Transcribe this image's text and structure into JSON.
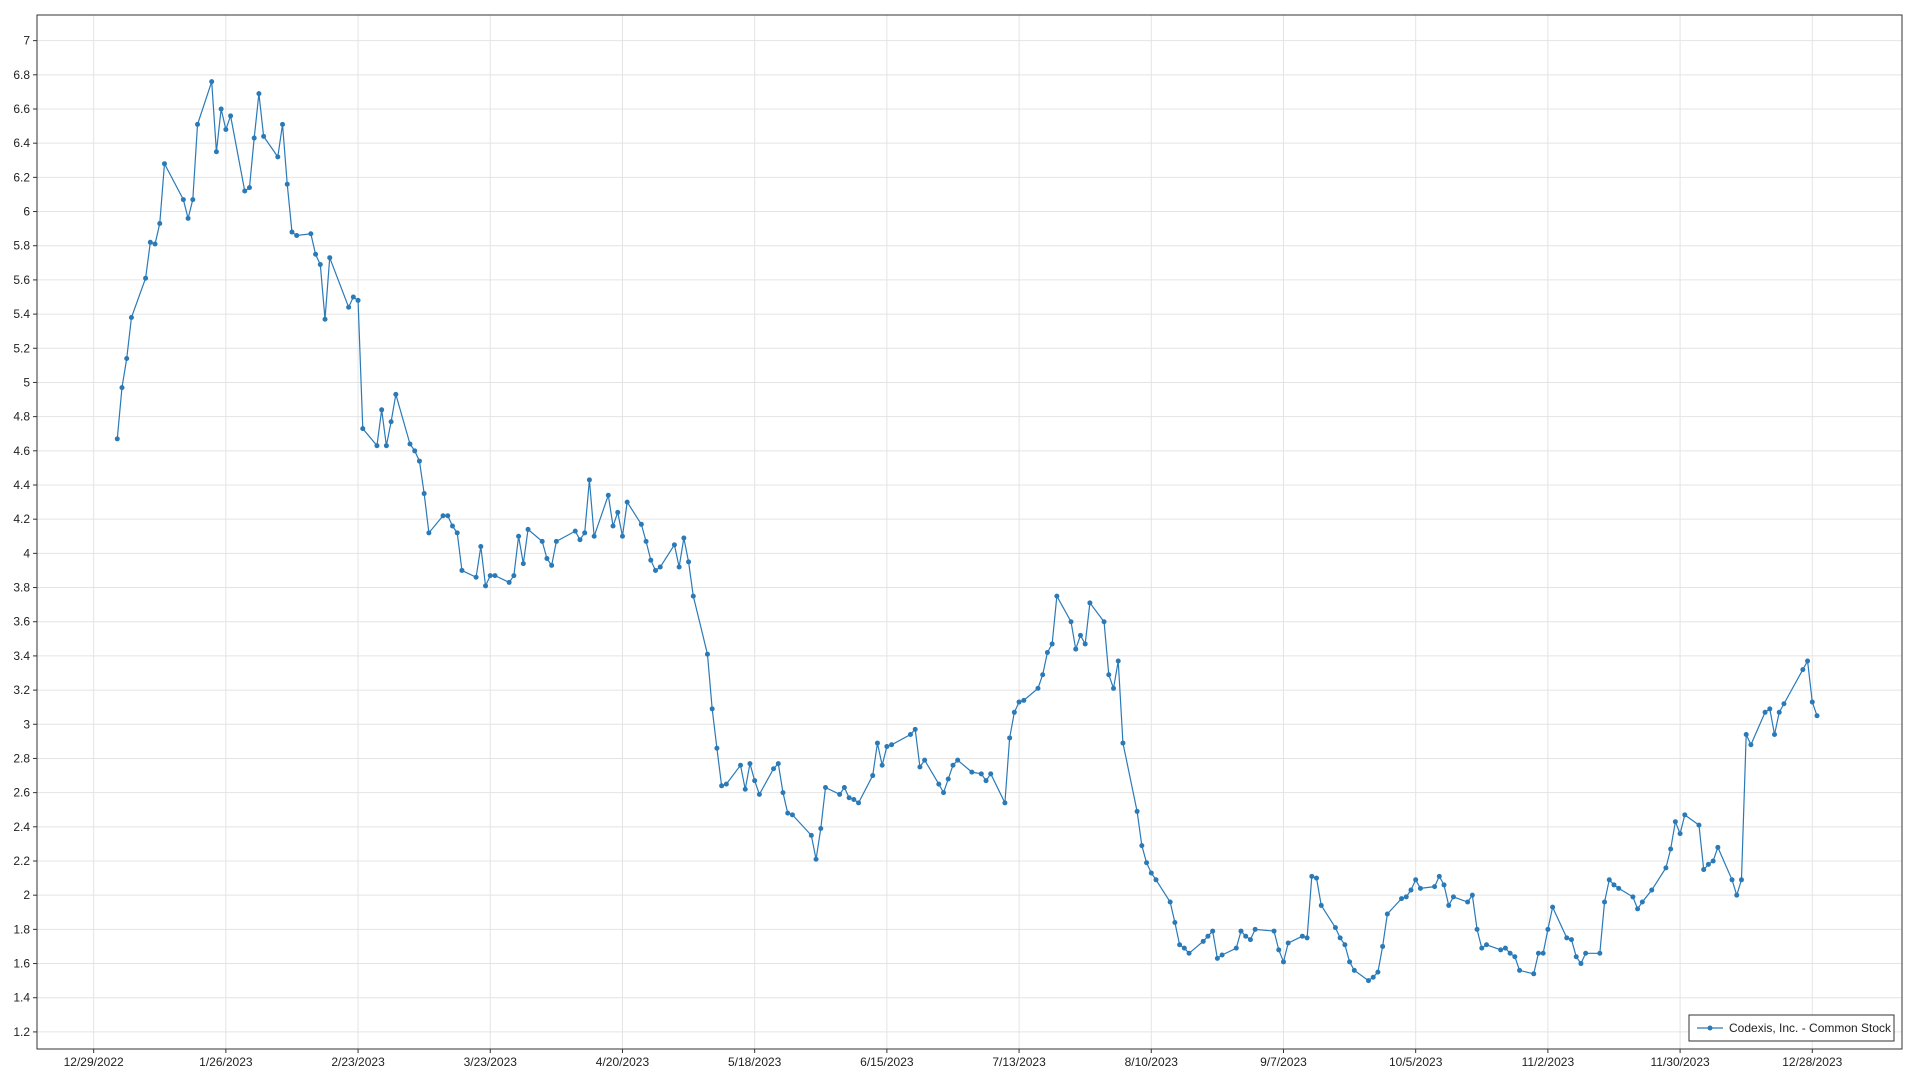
{
  "chart_data": {
    "type": "line",
    "x": [
      "1/3/2023",
      "1/4/2023",
      "1/5/2023",
      "1/6/2023",
      "1/9/2023",
      "1/10/2023",
      "1/11/2023",
      "1/12/2023",
      "1/13/2023",
      "1/17/2023",
      "1/18/2023",
      "1/19/2023",
      "1/20/2023",
      "1/23/2023",
      "1/24/2023",
      "1/25/2023",
      "1/26/2023",
      "1/27/2023",
      "1/30/2023",
      "1/31/2023",
      "2/1/2023",
      "2/2/2023",
      "2/3/2023",
      "2/6/2023",
      "2/7/2023",
      "2/8/2023",
      "2/9/2023",
      "2/10/2023",
      "2/13/2023",
      "2/14/2023",
      "2/15/2023",
      "2/16/2023",
      "2/17/2023",
      "2/21/2023",
      "2/22/2023",
      "2/23/2023",
      "2/24/2023",
      "2/27/2023",
      "2/28/2023",
      "3/1/2023",
      "3/2/2023",
      "3/3/2023",
      "3/6/2023",
      "3/7/2023",
      "3/8/2023",
      "3/9/2023",
      "3/10/2023",
      "3/13/2023",
      "3/14/2023",
      "3/15/2023",
      "3/16/2023",
      "3/17/2023",
      "3/20/2023",
      "3/21/2023",
      "3/22/2023",
      "3/23/2023",
      "3/24/2023",
      "3/27/2023",
      "3/28/2023",
      "3/29/2023",
      "3/30/2023",
      "3/31/2023",
      "4/3/2023",
      "4/4/2023",
      "4/5/2023",
      "4/6/2023",
      "4/10/2023",
      "4/11/2023",
      "4/12/2023",
      "4/13/2023",
      "4/14/2023",
      "4/17/2023",
      "4/18/2023",
      "4/19/2023",
      "4/20/2023",
      "4/21/2023",
      "4/24/2023",
      "4/25/2023",
      "4/26/2023",
      "4/27/2023",
      "4/28/2023",
      "5/1/2023",
      "5/2/2023",
      "5/3/2023",
      "5/4/2023",
      "5/5/2023",
      "5/8/2023",
      "5/9/2023",
      "5/10/2023",
      "5/11/2023",
      "5/12/2023",
      "5/15/2023",
      "5/16/2023",
      "5/17/2023",
      "5/18/2023",
      "5/19/2023",
      "5/22/2023",
      "5/23/2023",
      "5/24/2023",
      "5/25/2023",
      "5/26/2023",
      "5/30/2023",
      "5/31/2023",
      "6/1/2023",
      "6/2/2023",
      "6/5/2023",
      "6/6/2023",
      "6/7/2023",
      "6/8/2023",
      "6/9/2023",
      "6/12/2023",
      "6/13/2023",
      "6/14/2023",
      "6/15/2023",
      "6/16/2023",
      "6/20/2023",
      "6/21/2023",
      "6/22/2023",
      "6/23/2023",
      "6/26/2023",
      "6/27/2023",
      "6/28/2023",
      "6/29/2023",
      "6/30/2023",
      "7/3/2023",
      "7/5/2023",
      "7/6/2023",
      "7/7/2023",
      "7/10/2023",
      "7/11/2023",
      "7/12/2023",
      "7/13/2023",
      "7/14/2023",
      "7/17/2023",
      "7/18/2023",
      "7/19/2023",
      "7/20/2023",
      "7/21/2023",
      "7/24/2023",
      "7/25/2023",
      "7/26/2023",
      "7/27/2023",
      "7/28/2023",
      "7/31/2023",
      "8/1/2023",
      "8/2/2023",
      "8/3/2023",
      "8/4/2023",
      "8/7/2023",
      "8/8/2023",
      "8/9/2023",
      "8/10/2023",
      "8/11/2023",
      "8/14/2023",
      "8/15/2023",
      "8/16/2023",
      "8/17/2023",
      "8/18/2023",
      "8/21/2023",
      "8/22/2023",
      "8/23/2023",
      "8/24/2023",
      "8/25/2023",
      "8/28/2023",
      "8/29/2023",
      "8/30/2023",
      "8/31/2023",
      "9/1/2023",
      "9/5/2023",
      "9/6/2023",
      "9/7/2023",
      "9/8/2023",
      "9/11/2023",
      "9/12/2023",
      "9/13/2023",
      "9/14/2023",
      "9/15/2023",
      "9/18/2023",
      "9/19/2023",
      "9/20/2023",
      "9/21/2023",
      "9/22/2023",
      "9/25/2023",
      "9/26/2023",
      "9/27/2023",
      "9/28/2023",
      "9/29/2023",
      "10/2/2023",
      "10/3/2023",
      "10/4/2023",
      "10/5/2023",
      "10/6/2023",
      "10/9/2023",
      "10/10/2023",
      "10/11/2023",
      "10/12/2023",
      "10/13/2023",
      "10/16/2023",
      "10/17/2023",
      "10/18/2023",
      "10/19/2023",
      "10/20/2023",
      "10/23/2023",
      "10/24/2023",
      "10/25/2023",
      "10/26/2023",
      "10/27/2023",
      "10/30/2023",
      "10/31/2023",
      "11/1/2023",
      "11/2/2023",
      "11/3/2023",
      "11/6/2023",
      "11/7/2023",
      "11/8/2023",
      "11/9/2023",
      "11/10/2023",
      "11/13/2023",
      "11/14/2023",
      "11/15/2023",
      "11/16/2023",
      "11/17/2023",
      "11/20/2023",
      "11/21/2023",
      "11/22/2023",
      "11/24/2023",
      "11/27/2023",
      "11/28/2023",
      "11/29/2023",
      "11/30/2023",
      "12/1/2023",
      "12/4/2023",
      "12/5/2023",
      "12/6/2023",
      "12/7/2023",
      "12/8/2023",
      "12/11/2023",
      "12/12/2023",
      "12/13/2023",
      "12/14/2023",
      "12/15/2023",
      "12/18/2023",
      "12/19/2023",
      "12/20/2023",
      "12/21/2023",
      "12/22/2023",
      "12/26/2023",
      "12/27/2023",
      "12/28/2023",
      "12/29/2023"
    ],
    "series": [
      {
        "name": "Codexis, Inc. - Common Stock",
        "color": "#2a7ab8",
        "values": [
          4.67,
          4.97,
          5.14,
          5.38,
          5.61,
          5.82,
          5.81,
          5.93,
          6.28,
          6.07,
          5.96,
          6.07,
          6.51,
          6.76,
          6.35,
          6.6,
          6.48,
          6.56,
          6.12,
          6.14,
          6.43,
          6.69,
          6.44,
          6.32,
          6.51,
          6.16,
          5.88,
          5.86,
          5.87,
          5.75,
          5.69,
          5.37,
          5.73,
          5.44,
          5.5,
          5.48,
          4.73,
          4.63,
          4.84,
          4.63,
          4.77,
          4.93,
          4.64,
          4.6,
          4.54,
          4.35,
          4.12,
          4.22,
          4.22,
          4.16,
          4.12,
          3.9,
          3.86,
          4.04,
          3.81,
          3.87,
          3.87,
          3.83,
          3.87,
          4.1,
          3.94,
          4.14,
          4.07,
          3.97,
          3.93,
          4.07,
          4.13,
          4.08,
          4.12,
          4.43,
          4.1,
          4.34,
          4.16,
          4.24,
          4.1,
          4.3,
          4.17,
          4.07,
          3.96,
          3.9,
          3.92,
          4.05,
          3.92,
          4.09,
          3.95,
          3.75,
          3.41,
          3.09,
          2.86,
          2.64,
          2.65,
          2.76,
          2.62,
          2.77,
          2.67,
          2.59,
          2.74,
          2.77,
          2.6,
          2.48,
          2.47,
          2.35,
          2.21,
          2.39,
          2.63,
          2.59,
          2.63,
          2.57,
          2.56,
          2.54,
          2.7,
          2.89,
          2.76,
          2.87,
          2.88,
          2.94,
          2.97,
          2.75,
          2.79,
          2.65,
          2.6,
          2.68,
          2.76,
          2.79,
          2.72,
          2.71,
          2.67,
          2.71,
          2.54,
          2.92,
          3.07,
          3.13,
          3.14,
          3.21,
          3.29,
          3.42,
          3.47,
          3.75,
          3.6,
          3.44,
          3.52,
          3.47,
          3.71,
          3.6,
          3.29,
          3.21,
          3.37,
          2.89,
          2.49,
          2.29,
          2.19,
          2.13,
          2.09,
          1.96,
          1.84,
          1.71,
          1.69,
          1.66,
          1.73,
          1.76,
          1.79,
          1.63,
          1.65,
          1.69,
          1.79,
          1.76,
          1.74,
          1.8,
          1.79,
          1.68,
          1.61,
          1.72,
          1.76,
          1.75,
          2.11,
          2.1,
          1.94,
          1.81,
          1.75,
          1.71,
          1.61,
          1.56,
          1.5,
          1.52,
          1.55,
          1.7,
          1.89,
          1.98,
          1.99,
          2.03,
          2.09,
          2.04,
          2.05,
          2.11,
          2.06,
          1.94,
          1.99,
          1.96,
          2.0,
          1.8,
          1.69,
          1.71,
          1.68,
          1.69,
          1.66,
          1.64,
          1.56,
          1.54,
          1.66,
          1.66,
          1.8,
          1.93,
          1.75,
          1.74,
          1.64,
          1.6,
          1.66,
          1.66,
          1.96,
          2.09,
          2.06,
          2.04,
          1.99,
          1.92,
          1.96,
          2.03,
          2.16,
          2.27,
          2.43,
          2.36,
          2.47,
          2.41,
          2.15,
          2.18,
          2.2,
          2.28,
          2.09,
          2.0,
          2.09,
          2.94,
          2.88,
          3.07,
          3.09,
          2.94,
          3.07,
          3.12,
          3.32,
          3.37,
          3.13,
          3.05
        ]
      }
    ],
    "xlim": [
      "12/17/2022",
      "1/16/2024"
    ],
    "xticks": [
      "12/29/2022",
      "1/26/2023",
      "2/23/2023",
      "3/23/2023",
      "4/20/2023",
      "5/18/2023",
      "6/15/2023",
      "7/13/2023",
      "8/10/2023",
      "9/7/2023",
      "10/5/2023",
      "11/2/2023",
      "11/30/2023",
      "12/28/2023"
    ],
    "ylim": [
      1.1,
      7.15
    ],
    "yticks": [
      1.2,
      1.4,
      1.6,
      1.8,
      2,
      2.2,
      2.4,
      2.6,
      2.8,
      3,
      3.2,
      3.4,
      3.6,
      3.8,
      4,
      4.2,
      4.4,
      4.6,
      4.8,
      5,
      5.2,
      5.4,
      5.6,
      5.8,
      6,
      6.2,
      6.4,
      6.6,
      6.8,
      7
    ],
    "grid": true,
    "legend": "lower right"
  }
}
